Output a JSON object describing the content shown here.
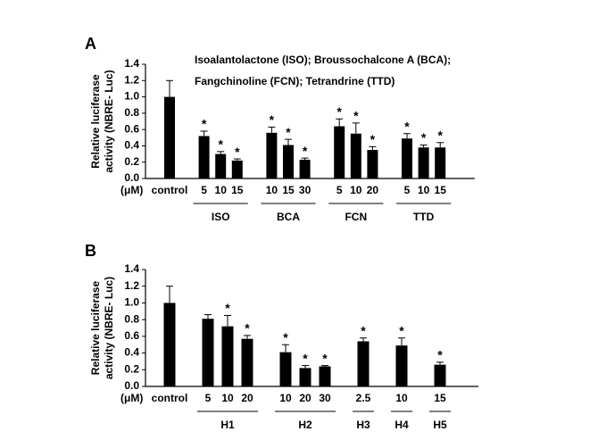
{
  "chart_data": [
    {
      "type": "bar",
      "panel_label": "A",
      "annotation": [
        "Isoalantolactone (ISO); Broussochalcone A (BCA);",
        "Fangchinoline (FCN); Tetrandrine (TTD)"
      ],
      "ylabel": [
        "Relative luciferase",
        "activity (NBRE- Luc)"
      ],
      "unit_label": "(μM)",
      "categories": [
        "control",
        "5",
        "10",
        "15",
        "10",
        "15",
        "30",
        "5",
        "10",
        "20",
        "5",
        "10",
        "15"
      ],
      "groups": [
        {
          "label": null,
          "count": 1
        },
        {
          "label": "ISO",
          "count": 3
        },
        {
          "label": "BCA",
          "count": 3
        },
        {
          "label": "FCN",
          "count": 3
        },
        {
          "label": "TTD",
          "count": 3
        }
      ],
      "values": [
        1.0,
        0.52,
        0.3,
        0.22,
        0.56,
        0.41,
        0.23,
        0.64,
        0.55,
        0.35,
        0.49,
        0.38,
        0.38
      ],
      "errors": [
        0.2,
        0.06,
        0.03,
        0.02,
        0.07,
        0.07,
        0.02,
        0.09,
        0.13,
        0.04,
        0.06,
        0.03,
        0.06
      ],
      "markers": [
        null,
        "*",
        "*",
        "*",
        "*",
        "*",
        "*",
        "*",
        "*",
        "*",
        "*",
        "*",
        "*"
      ],
      "color": "#000000",
      "ylim": [
        0,
        1.4
      ],
      "yticks": [
        {
          "value": 0,
          "label": "0.0"
        },
        0.2,
        0.4,
        0.6,
        0.8,
        {
          "value": 1,
          "label": "1.0"
        },
        1.2,
        1.4
      ]
    },
    {
      "type": "bar",
      "panel_label": "B",
      "ylabel": [
        "Relative luciferase",
        "activity (NBRE- Luc)"
      ],
      "unit_label": "(μM)",
      "categories": [
        "control",
        "5",
        "10",
        "20",
        "10",
        "20",
        "30",
        "2.5",
        "10",
        "15"
      ],
      "groups": [
        {
          "label": null,
          "count": 1
        },
        {
          "label": "H1",
          "count": 3
        },
        {
          "label": "H2",
          "count": 3
        },
        {
          "label": "H3",
          "count": 1
        },
        {
          "label": "H4",
          "count": 1
        },
        {
          "label": "H5",
          "count": 1
        }
      ],
      "values": [
        1.0,
        0.81,
        0.72,
        0.57,
        0.41,
        0.22,
        0.24,
        0.54,
        0.49,
        0.26
      ],
      "errors": [
        0.2,
        0.05,
        0.13,
        0.04,
        0.09,
        0.03,
        0.01,
        0.04,
        0.09,
        0.03
      ],
      "markers": [
        null,
        null,
        "*",
        "*",
        "*",
        "*",
        "*",
        "*",
        "*",
        "*"
      ],
      "color": "#000000",
      "ylim": [
        0,
        1.4
      ],
      "yticks": [
        {
          "value": 0,
          "label": "0.0"
        },
        0.2,
        0.4,
        0.6,
        0.8,
        {
          "value": 1,
          "label": "1.0"
        },
        1.2,
        1.4
      ]
    }
  ]
}
